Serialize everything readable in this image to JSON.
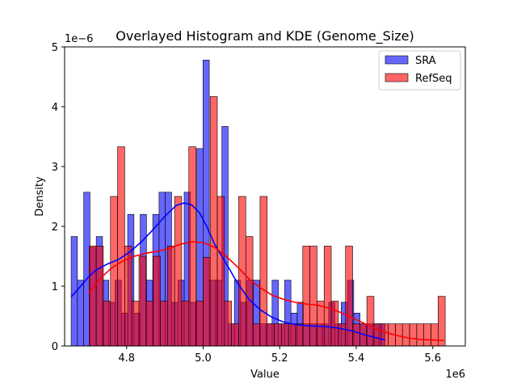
{
  "chart_data": {
    "type": "bar",
    "title": "Overlayed Histogram and KDE (Genome_Size)",
    "xlabel": "Value",
    "ylabel": "Density",
    "x_offset_label": "1e6",
    "y_offset_label": "1e−6",
    "xlim": [
      4.638,
      5.685
    ],
    "ylim": [
      0,
      5.0
    ],
    "x_ticks": [
      "4.8",
      "5.0",
      "5.2",
      "5.4",
      "5.6"
    ],
    "x_tick_values": [
      4.8,
      5.0,
      5.2,
      5.4,
      5.6
    ],
    "y_ticks": [
      "0",
      "1",
      "2",
      "3",
      "4",
      "5"
    ],
    "y_tick_values": [
      0,
      1,
      2,
      3,
      4,
      5
    ],
    "legend_position": "top-right",
    "grid": false,
    "series": [
      {
        "name": "SRA",
        "color": "#0000ff",
        "bin_start": 4.655,
        "bin_width": 0.01641,
        "values": [
          1.83,
          1.1,
          2.57,
          1.65,
          1.83,
          1.1,
          0.73,
          1.1,
          0.55,
          2.2,
          0.55,
          2.2,
          1.1,
          2.2,
          2.57,
          2.57,
          0.73,
          1.1,
          2.57,
          0.73,
          3.3,
          4.78,
          1.1,
          1.1,
          3.67,
          0.37,
          1.1,
          0.73,
          1.1,
          1.1,
          0.37,
          0.37,
          1.1,
          0.37,
          1.1,
          0.55,
          0.73,
          0.37,
          0.37,
          0.37,
          0.37,
          0.73,
          0.37,
          0.73,
          1.1,
          0.55,
          0.37,
          0.37,
          0.37,
          0.37
        ]
      },
      {
        "name": "RefSeq",
        "color": "#ff0000",
        "bin_start": 4.702,
        "bin_width": 0.01861,
        "values": [
          1.67,
          1.67,
          0.75,
          2.5,
          3.33,
          1.67,
          0.75,
          1.5,
          0.75,
          1.5,
          0.75,
          1.67,
          2.5,
          0.75,
          3.33,
          0.75,
          1.48,
          4.17,
          2.5,
          0.75,
          0.37,
          2.5,
          1.83,
          0.37,
          2.5,
          0.37,
          0.37,
          0.37,
          0.37,
          0.37,
          1.67,
          1.67,
          0.75,
          1.67,
          0.75,
          0.37,
          1.67,
          0.37,
          0.37,
          0.83,
          0.37,
          0.37,
          0.37,
          0.37,
          0.37,
          0.37,
          0.37,
          0.37,
          0.37,
          0.83
        ]
      }
    ],
    "kde": [
      {
        "name": "SRA",
        "color": "#0000ff",
        "x": [
          4.655,
          4.68,
          4.7,
          4.72,
          4.75,
          4.78,
          4.81,
          4.84,
          4.87,
          4.9,
          4.93,
          4.95,
          4.97,
          4.99,
          5.01,
          5.03,
          5.06,
          5.09,
          5.12,
          5.15,
          5.18,
          5.21,
          5.24,
          5.27,
          5.3,
          5.33,
          5.36,
          5.39,
          5.42,
          5.45,
          5.475
        ],
        "y": [
          0.82,
          1.0,
          1.15,
          1.27,
          1.37,
          1.45,
          1.58,
          1.75,
          1.95,
          2.17,
          2.35,
          2.39,
          2.36,
          2.23,
          1.99,
          1.7,
          1.38,
          1.05,
          0.78,
          0.6,
          0.48,
          0.4,
          0.36,
          0.34,
          0.33,
          0.32,
          0.29,
          0.25,
          0.19,
          0.14,
          0.1
        ]
      },
      {
        "name": "RefSeq",
        "color": "#ff0000",
        "x": [
          4.7,
          4.73,
          4.76,
          4.79,
          4.82,
          4.85,
          4.88,
          4.91,
          4.94,
          4.97,
          5.0,
          5.03,
          5.06,
          5.09,
          5.12,
          5.15,
          5.18,
          5.21,
          5.24,
          5.27,
          5.3,
          5.33,
          5.36,
          5.39,
          5.42,
          5.45,
          5.48,
          5.51,
          5.54,
          5.57,
          5.6,
          5.63
        ],
        "y": [
          0.88,
          1.12,
          1.3,
          1.42,
          1.5,
          1.55,
          1.58,
          1.63,
          1.7,
          1.74,
          1.73,
          1.65,
          1.5,
          1.32,
          1.12,
          0.97,
          0.85,
          0.78,
          0.73,
          0.7,
          0.68,
          0.63,
          0.56,
          0.47,
          0.38,
          0.29,
          0.22,
          0.17,
          0.13,
          0.11,
          0.1,
          0.09
        ]
      }
    ]
  }
}
